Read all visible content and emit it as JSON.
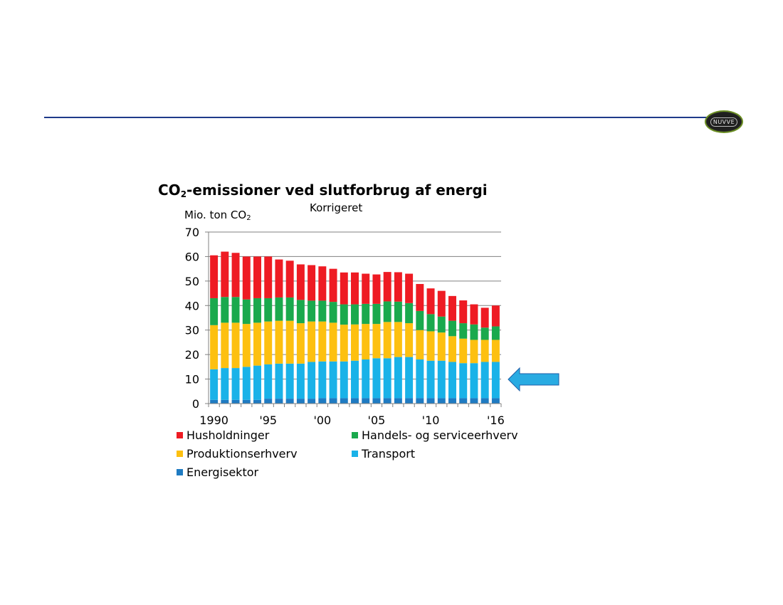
{
  "logo_text": "NUVVE",
  "colors": {
    "header_rule": "#1f3a8a",
    "axis": "#808080",
    "grid": "#808080",
    "arrow_fill": "#29abe2",
    "arrow_stroke": "#1f5fa8"
  },
  "chart_data": {
    "type": "bar",
    "stacked": true,
    "title_main": "CO",
    "title_sub": "2",
    "title_rest": "-emissioner ved slutforbrug af energi",
    "subtitle": "Korrigeret",
    "ylabel_main": "Mio. ton CO",
    "ylabel_sub": "2",
    "ylim": [
      0,
      70
    ],
    "yticks": [
      0,
      10,
      20,
      30,
      40,
      50,
      60,
      70
    ],
    "grid": true,
    "legend_position": "bottom",
    "categories": [
      "1990",
      "1991",
      "1992",
      "1993",
      "1994",
      "1995",
      "1996",
      "1997",
      "1998",
      "1999",
      "2000",
      "2001",
      "2002",
      "2003",
      "2004",
      "2005",
      "2006",
      "2007",
      "2008",
      "2009",
      "2010",
      "2011",
      "2012",
      "2013",
      "2014",
      "2015",
      "2016"
    ],
    "xtick_labels": [
      {
        "index": 0,
        "label": "1990"
      },
      {
        "index": 5,
        "label": "'95"
      },
      {
        "index": 10,
        "label": "'00"
      },
      {
        "index": 15,
        "label": "'05"
      },
      {
        "index": 20,
        "label": "'10"
      },
      {
        "index": 26,
        "label": "'16"
      }
    ],
    "series": [
      {
        "name": "Energisektor",
        "color": "#1f7bc2",
        "values": [
          1.5,
          1.5,
          1.5,
          1.5,
          1.5,
          2,
          2,
          2,
          2,
          2,
          2.2,
          2.2,
          2.2,
          2.2,
          2.2,
          2.2,
          2.2,
          2.2,
          2.2,
          2.2,
          2.2,
          2.2,
          2.2,
          2.2,
          2.2,
          2.2,
          2.2
        ]
      },
      {
        "name": "Transport",
        "color": "#19b2e8",
        "values": [
          12.5,
          13,
          13,
          13.5,
          14,
          14,
          14.3,
          14.3,
          14.3,
          15,
          15,
          15,
          15,
          15.3,
          15.8,
          16.3,
          16.3,
          16.8,
          16.8,
          15.8,
          15.3,
          15.3,
          14.8,
          14.3,
          14.3,
          14.8,
          14.8
        ]
      },
      {
        "name": "Produktionserhverv",
        "color": "#fdc010",
        "values": [
          18,
          18.5,
          18.5,
          17.5,
          17.5,
          17.5,
          17.5,
          17.5,
          16.5,
          16.5,
          16.3,
          15.8,
          15,
          14.8,
          14.5,
          14,
          14.8,
          14.3,
          13.8,
          12,
          12,
          11.5,
          10.5,
          10,
          9.5,
          9,
          9
        ]
      },
      {
        "name": "Handels- og serviceerhverv",
        "color": "#1aa94d",
        "values": [
          11,
          10.5,
          10.5,
          10,
          10,
          9.5,
          9.5,
          9.5,
          9.5,
          8.5,
          8.5,
          8.5,
          8.3,
          8.2,
          8.2,
          8.2,
          8.4,
          8.3,
          8.2,
          7.8,
          7,
          6.5,
          6.3,
          6.3,
          6.3,
          5,
          5.5
        ]
      },
      {
        "name": "Husholdninger",
        "color": "#ee1b23",
        "values": [
          17.5,
          18.5,
          18,
          17.5,
          17,
          17,
          15.5,
          15,
          14.5,
          14.5,
          14,
          13.5,
          13,
          13,
          12.3,
          12,
          12,
          12,
          12,
          11,
          10.5,
          10.5,
          10.1,
          9.3,
          8.2,
          8.1,
          8.5
        ]
      }
    ]
  }
}
